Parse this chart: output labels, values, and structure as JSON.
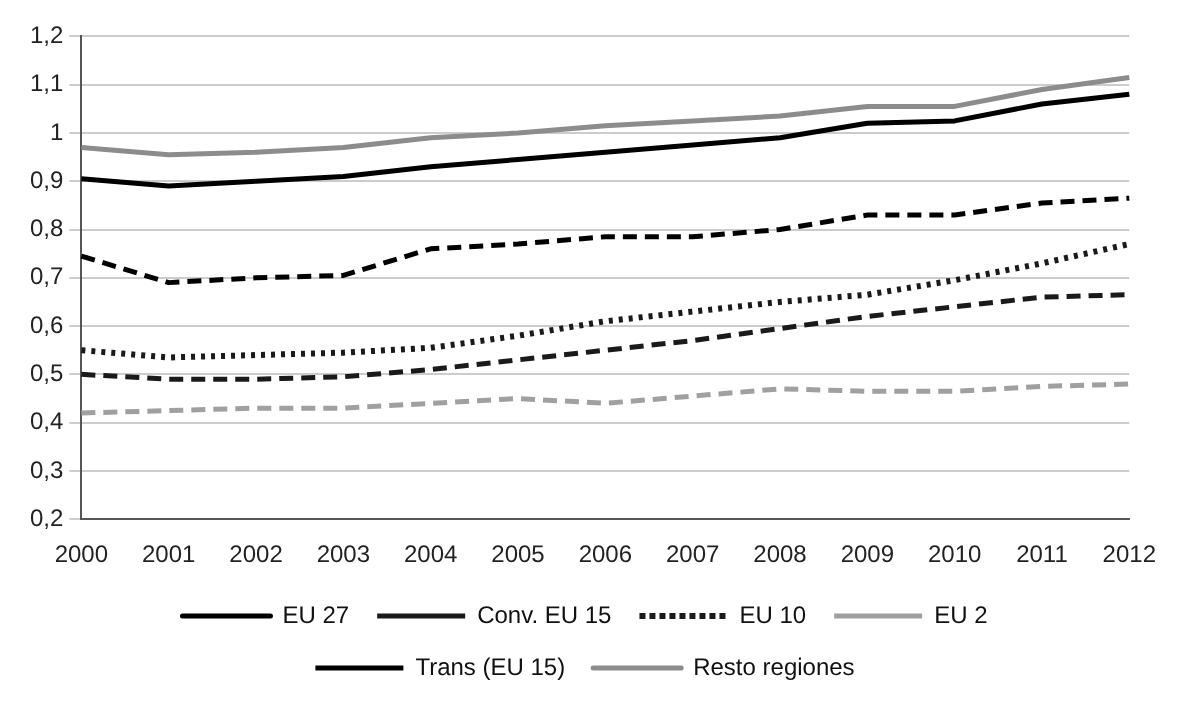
{
  "chart_data": {
    "type": "line",
    "categories": [
      "2000",
      "2001",
      "2002",
      "2003",
      "2004",
      "2005",
      "2006",
      "2007",
      "2008",
      "2009",
      "2010",
      "2011",
      "2012"
    ],
    "ylim": [
      0.2,
      1.2
    ],
    "yticks": [
      {
        "value": 0.2,
        "label": "0,2"
      },
      {
        "value": 0.3,
        "label": "0,3"
      },
      {
        "value": 0.4,
        "label": "0,4"
      },
      {
        "value": 0.5,
        "label": "0,5"
      },
      {
        "value": 0.6,
        "label": "0,6"
      },
      {
        "value": 0.7,
        "label": "0,7"
      },
      {
        "value": 0.8,
        "label": "0,8"
      },
      {
        "value": 0.9,
        "label": "0,9"
      },
      {
        "value": 1,
        "label": "1"
      },
      {
        "value": 1.1,
        "label": "1,1"
      },
      {
        "value": 1.2,
        "label": "1,2"
      }
    ],
    "grid": "y",
    "legend": "bottom",
    "marker": "none",
    "series": [
      {
        "name": "EU 27",
        "color": "#000000",
        "line_style": "solid",
        "values": [
          0.905,
          0.89,
          0.9,
          0.91,
          0.93,
          0.945,
          0.96,
          0.975,
          0.99,
          1.02,
          1.025,
          1.06,
          1.08
        ]
      },
      {
        "name": "Conv. EU 15",
        "color": "#1a1a1a",
        "line_style": "dashed",
        "values": [
          0.5,
          0.49,
          0.49,
          0.495,
          0.51,
          0.53,
          0.55,
          0.57,
          0.595,
          0.62,
          0.64,
          0.66,
          0.665
        ]
      },
      {
        "name": "EU 10",
        "color": "#1a1a1a",
        "line_style": "dotted",
        "values": [
          0.55,
          0.535,
          0.54,
          0.545,
          0.555,
          0.58,
          0.61,
          0.63,
          0.65,
          0.665,
          0.695,
          0.73,
          0.77
        ]
      },
      {
        "name": "EU 2",
        "color": "#a0a0a0",
        "line_style": "dashed",
        "values": [
          0.42,
          0.425,
          0.43,
          0.43,
          0.44,
          0.45,
          0.44,
          0.455,
          0.47,
          0.465,
          0.465,
          0.475,
          0.48
        ]
      },
      {
        "name": "Trans (EU 15)",
        "color": "#000000",
        "line_style": "dashed",
        "values": [
          0.745,
          0.69,
          0.7,
          0.705,
          0.76,
          0.77,
          0.785,
          0.785,
          0.8,
          0.83,
          0.83,
          0.855,
          0.865
        ]
      },
      {
        "name": "Resto regiones",
        "color": "#8c8c8c",
        "line_style": "solid",
        "values": [
          0.97,
          0.955,
          0.96,
          0.97,
          0.99,
          1.0,
          1.015,
          1.025,
          1.035,
          1.055,
          1.055,
          1.09,
          1.115
        ]
      }
    ]
  }
}
